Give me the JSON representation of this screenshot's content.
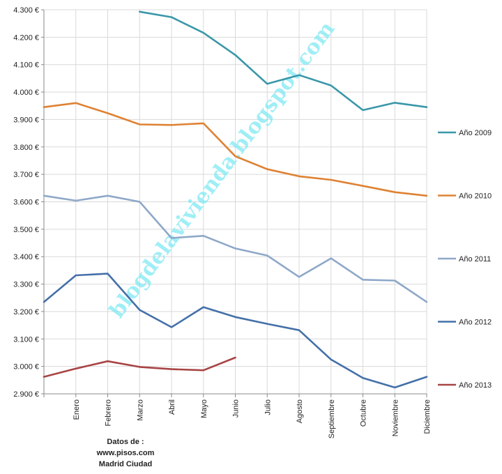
{
  "chart_data": {
    "type": "line",
    "categories": [
      "",
      "Enero",
      "Febrero",
      "Marzo",
      "Abril",
      "Mayo",
      "Junio",
      "Julio",
      "Agosto",
      "Septiembre",
      "Octubre",
      "Noviembre",
      "Diciembre"
    ],
    "ylim": [
      2900,
      4300
    ],
    "yticks": [
      2900,
      3000,
      3100,
      3200,
      3300,
      3400,
      3500,
      3600,
      3700,
      3800,
      3900,
      4000,
      4100,
      4200,
      4300
    ],
    "ytick_labels": [
      "2.900 €",
      "3.000 €",
      "3.100 €",
      "3.200 €",
      "3.300 €",
      "3.400 €",
      "3.500 €",
      "3.600 €",
      "3.700 €",
      "3.800 €",
      "3.900 €",
      "4.000 €",
      "4.100 €",
      "4.200 €",
      "4.300 €"
    ],
    "grid": true,
    "legend_position": "right",
    "series": [
      {
        "name": "Año 2009",
        "color": "#3a97a9",
        "values": [
          null,
          null,
          null,
          4293,
          4273,
          4216,
          4135,
          4030,
          4062,
          4024,
          3934,
          3961,
          3945
        ]
      },
      {
        "name": "Año 2010",
        "color": "#de8233",
        "values": [
          3945,
          3960,
          3923,
          3882,
          3880,
          3886,
          3766,
          3719,
          3693,
          3680,
          3658,
          3635,
          3622
        ]
      },
      {
        "name": "Año 2011",
        "color": "#8ea8c8",
        "values": [
          3622,
          3604,
          3622,
          3600,
          3468,
          3476,
          3430,
          3404,
          3326,
          3394,
          3316,
          3313,
          3235
        ]
      },
      {
        "name": "Año 2012",
        "color": "#4470a8",
        "values": [
          3235,
          3332,
          3338,
          3206,
          3143,
          3216,
          3180,
          3155,
          3132,
          3025,
          2958,
          2923,
          2962
        ]
      },
      {
        "name": "Año 2013",
        "color": "#a84444",
        "values": [
          2962,
          2992,
          3019,
          2998,
          2990,
          2986,
          3032,
          null,
          null,
          null,
          null,
          null,
          null
        ]
      }
    ],
    "watermark": "blogdelavivienda.blogspot.com"
  },
  "credit": {
    "line1": "Datos de :",
    "line2": "www.pisos.com",
    "line3": "Madrid Ciudad"
  },
  "colors": {
    "grid": "#d9d9d9",
    "axis": "#8a8a8a"
  }
}
